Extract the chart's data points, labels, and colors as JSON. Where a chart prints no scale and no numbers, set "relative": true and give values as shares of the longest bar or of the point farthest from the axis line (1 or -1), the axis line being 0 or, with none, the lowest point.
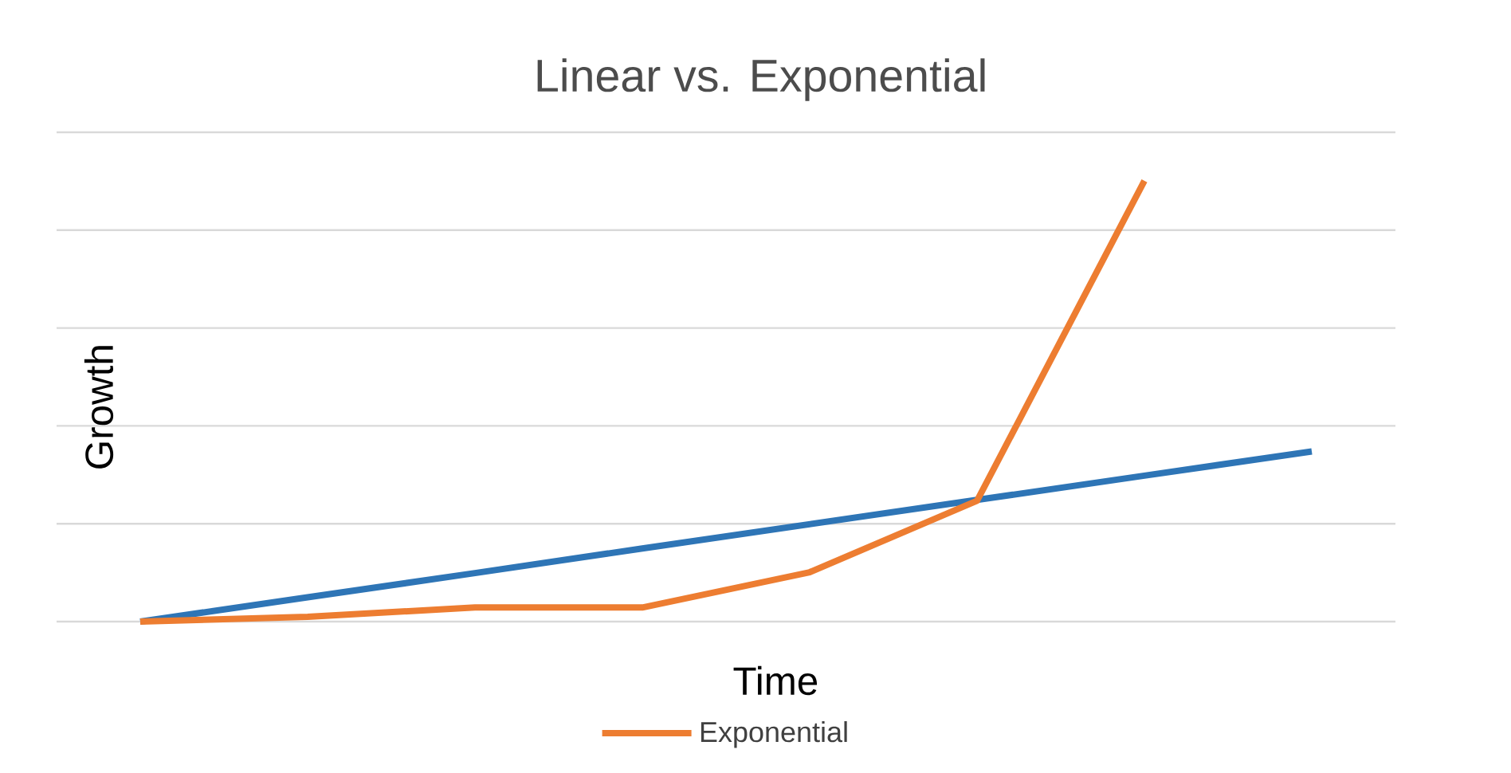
{
  "chart_data": {
    "type": "line",
    "title": "Linear vs. Exponential",
    "xlabel": "Time",
    "ylabel": "Growth",
    "relative": true,
    "grid": "y",
    "legend": "bottom",
    "categories": [
      null,
      null,
      null,
      null,
      null,
      null,
      null,
      null
    ],
    "series": [
      {
        "color": "#2e75b6",
        "values": [
          0,
          0.055,
          0.11,
          0.166,
          0.221,
          0.276,
          0.331,
          0.386
        ]
      },
      {
        "name": "Exponential",
        "color": "#ed7d31",
        "values": [
          0,
          0.011,
          0.032,
          0.032,
          0.112,
          0.274,
          1,
          null
        ]
      }
    ]
  }
}
